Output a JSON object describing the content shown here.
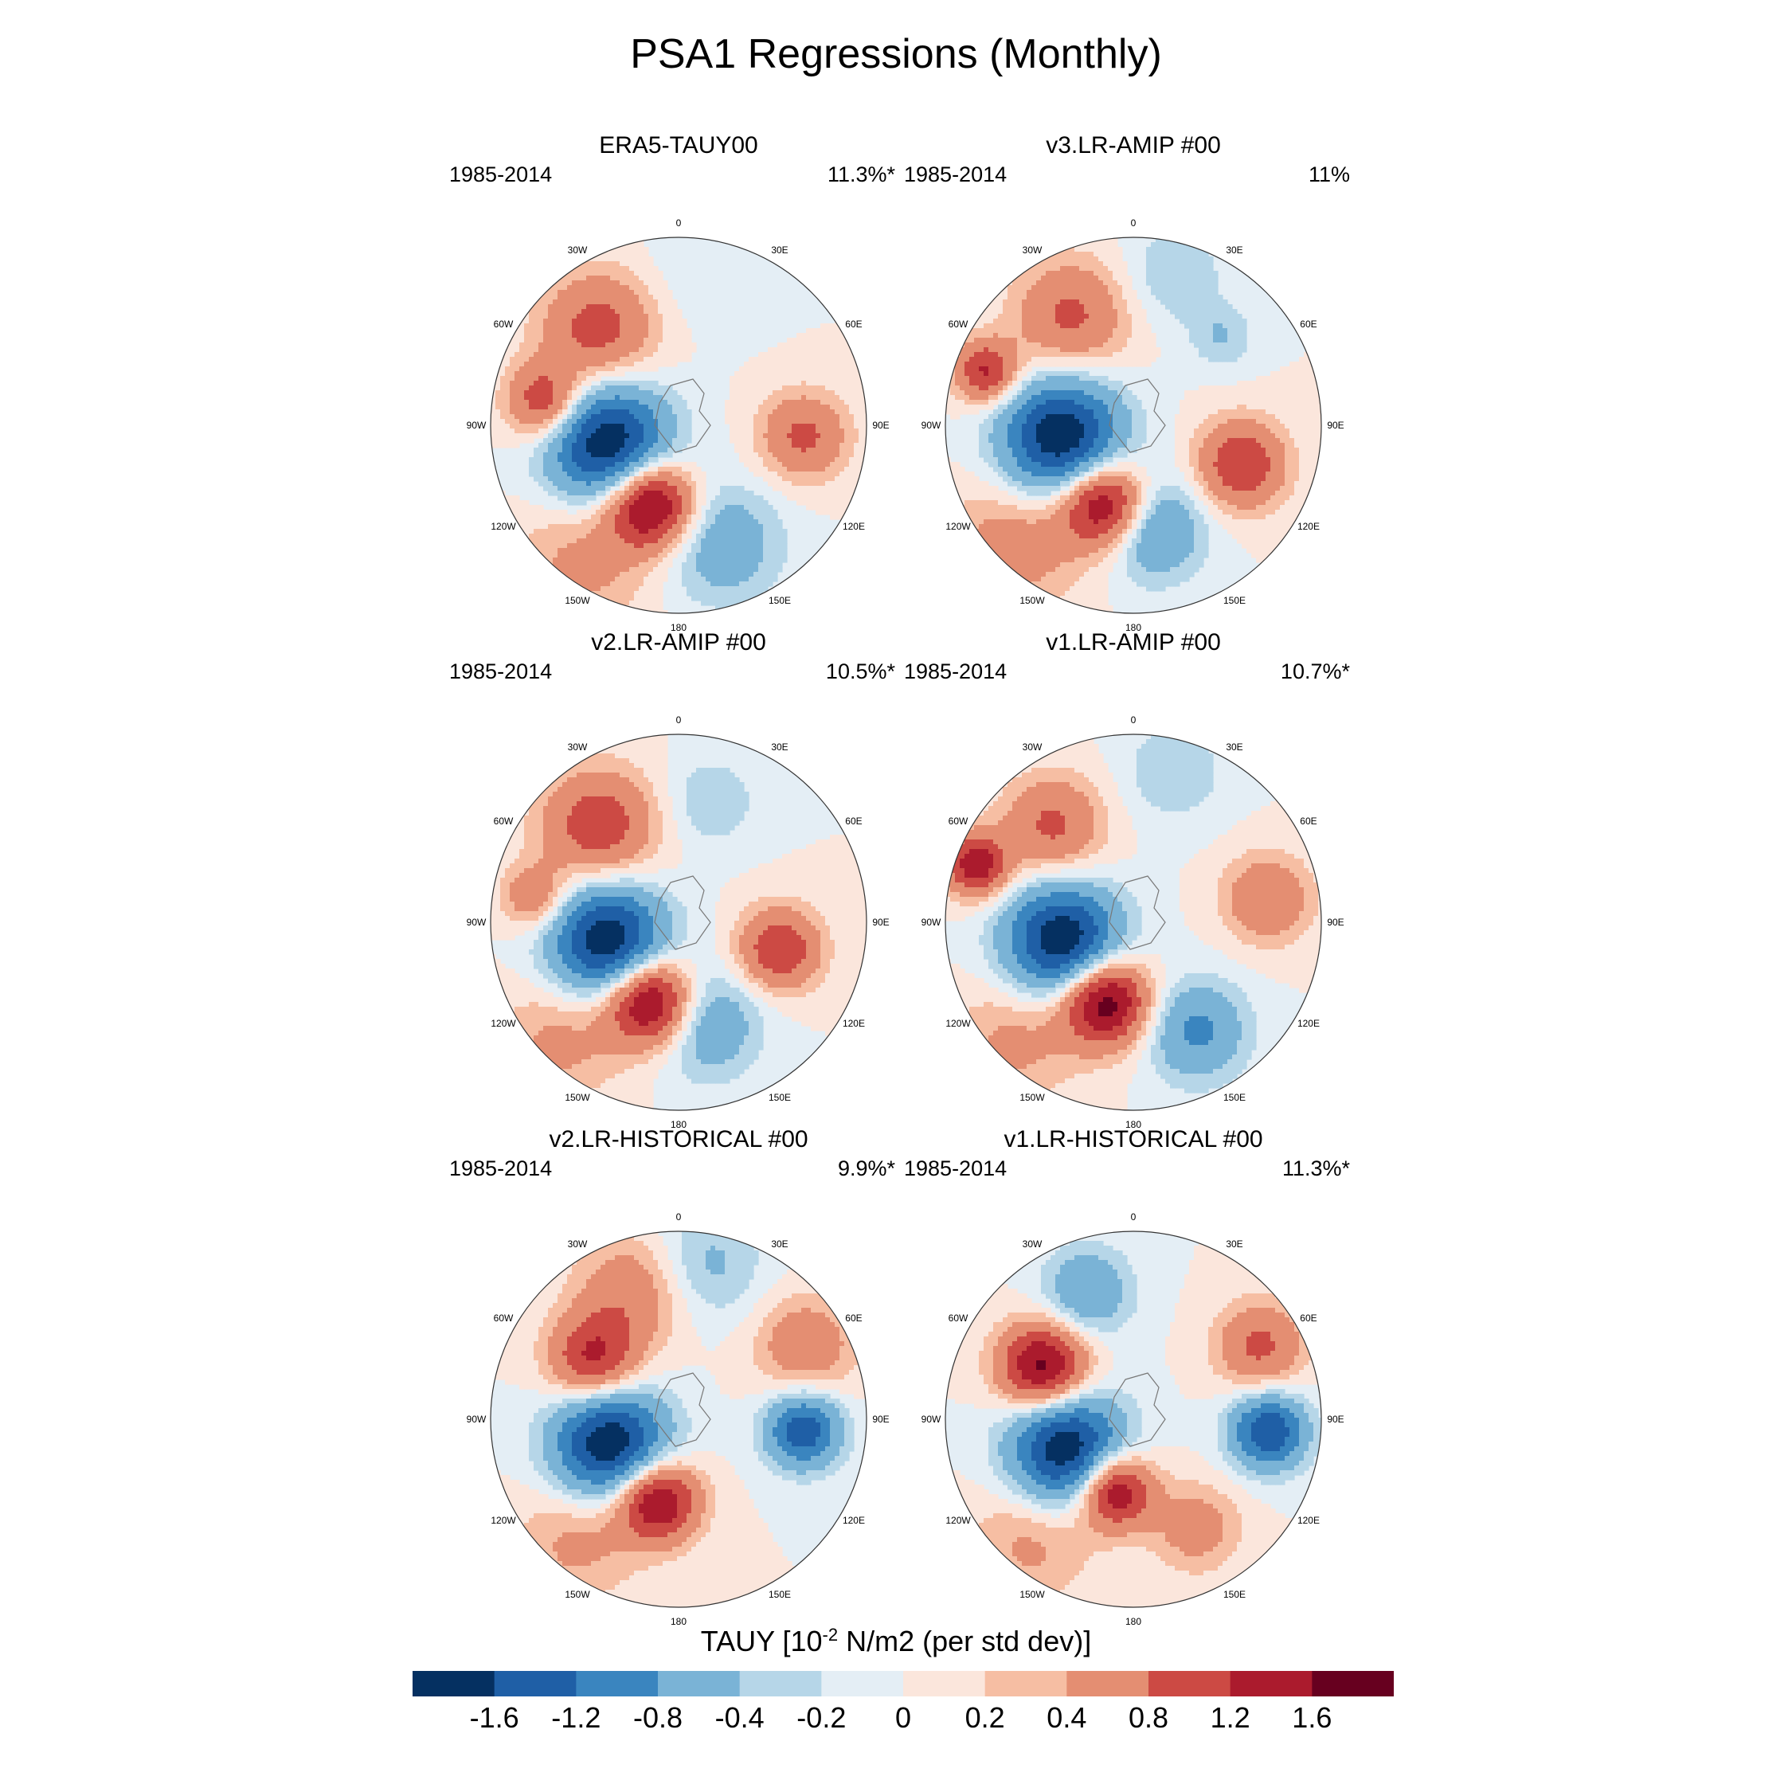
{
  "title": "PSA1 Regressions (Monthly)",
  "colors": [
    "#053061",
    "#1f5fa6",
    "#3a85bf",
    "#7ab3d6",
    "#b6d6e8",
    "#e4eef5",
    "#fbe6dc",
    "#f6bea3",
    "#e48e72",
    "#cc4a44",
    "#ab1b2d",
    "#67001f"
  ],
  "colorbar": {
    "label_text": "TAUY [10",
    "label_exp": "-2",
    "label_tail": " N/m2 (per std dev)]",
    "ticks": [
      "-1.6",
      "-1.2",
      "-0.8",
      "-0.4",
      "-0.2",
      "0",
      "0.2",
      "0.4",
      "0.8",
      "1.2",
      "1.6"
    ]
  },
  "lon_labels": [
    "0",
    "30E",
    "60E",
    "90E",
    "120E",
    "150E",
    "180",
    "150W",
    "120W",
    "90W",
    "60W",
    "30W"
  ],
  "panels": [
    {
      "title": "ERA5-TAUY00",
      "period": "1985-2014",
      "variance": "11.3%*",
      "blobs": [
        [
          -105,
          55,
          95,
          -2.0
        ],
        [
          -160,
          50,
          70,
          2.0
        ],
        [
          -40,
          30,
          90,
          1.0
        ],
        [
          -80,
          25,
          60,
          1.2
        ],
        [
          95,
          30,
          70,
          0.9
        ],
        [
          160,
          30,
          95,
          -0.7
        ],
        [
          -145,
          10,
          110,
          0.5
        ],
        [
          10,
          15,
          90,
          -0.2
        ]
      ]
    },
    {
      "title": "v3.LR-AMIP  #00",
      "period": "1985-2014",
      "variance": "11%",
      "blobs": [
        [
          -100,
          55,
          95,
          -2.0
        ],
        [
          -160,
          50,
          70,
          1.9
        ],
        [
          -30,
          30,
          90,
          0.9
        ],
        [
          -70,
          15,
          50,
          1.3
        ],
        [
          110,
          35,
          70,
          1.2
        ],
        [
          170,
          40,
          80,
          -1.0
        ],
        [
          -135,
          10,
          110,
          0.6
        ],
        [
          15,
          15,
          80,
          -0.4
        ],
        [
          45,
          30,
          50,
          -0.4
        ]
      ]
    },
    {
      "title": "v2.LR-AMIP  #00",
      "period": "1985-2014",
      "variance": "10.5%*",
      "blobs": [
        [
          -105,
          55,
          90,
          -2.0
        ],
        [
          -160,
          50,
          70,
          2.0
        ],
        [
          -40,
          30,
          90,
          1.1
        ],
        [
          -80,
          20,
          50,
          0.8
        ],
        [
          105,
          40,
          65,
          1.2
        ],
        [
          165,
          40,
          85,
          -0.8
        ],
        [
          -135,
          10,
          100,
          0.5
        ],
        [
          15,
          30,
          70,
          -0.4
        ]
      ]
    },
    {
      "title": "v1.LR-AMIP  #00",
      "period": "1985-2014",
      "variance": "10.7%*",
      "blobs": [
        [
          -105,
          55,
          90,
          -2.0
        ],
        [
          -160,
          50,
          70,
          2.0
        ],
        [
          -40,
          30,
          80,
          0.9
        ],
        [
          -70,
          10,
          50,
          1.5
        ],
        [
          80,
          25,
          70,
          0.8
        ],
        [
          150,
          30,
          80,
          -0.9
        ],
        [
          -135,
          10,
          100,
          0.5
        ],
        [
          15,
          15,
          80,
          -0.4
        ]
      ]
    },
    {
      "title": "v2.LR-HISTORICAL  #00",
      "period": "1985-2014",
      "variance": "9.9%*",
      "blobs": [
        [
          -110,
          55,
          90,
          -2.0
        ],
        [
          -165,
          50,
          65,
          1.8
        ],
        [
          -55,
          40,
          70,
          1.3
        ],
        [
          -20,
          25,
          90,
          0.7
        ],
        [
          95,
          30,
          60,
          -1.5
        ],
        [
          60,
          20,
          80,
          0.7
        ],
        [
          10,
          15,
          90,
          -0.5
        ],
        [
          -140,
          15,
          100,
          0.5
        ]
      ]
    },
    {
      "title": "v1.LR-HISTORICAL  #00",
      "period": "1985-2014",
      "variance": "11.3%*",
      "blobs": [
        [
          -115,
          55,
          90,
          -2.0
        ],
        [
          -165,
          55,
          60,
          1.8
        ],
        [
          -60,
          40,
          70,
          1.8
        ],
        [
          -20,
          25,
          70,
          -0.8
        ],
        [
          95,
          25,
          60,
          -1.6
        ],
        [
          60,
          20,
          70,
          0.9
        ],
        [
          150,
          30,
          70,
          0.6
        ],
        [
          -140,
          15,
          100,
          0.5
        ]
      ]
    }
  ]
}
